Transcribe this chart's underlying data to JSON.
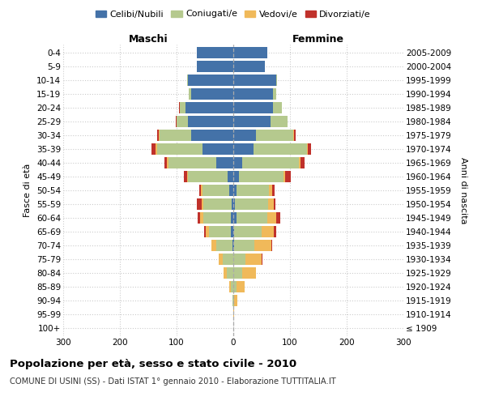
{
  "age_groups": [
    "100+",
    "95-99",
    "90-94",
    "85-89",
    "80-84",
    "75-79",
    "70-74",
    "65-69",
    "60-64",
    "55-59",
    "50-54",
    "45-49",
    "40-44",
    "35-39",
    "30-34",
    "25-29",
    "20-24",
    "15-19",
    "10-14",
    "5-9",
    "0-4"
  ],
  "birth_years": [
    "≤ 1909",
    "1910-1914",
    "1915-1919",
    "1920-1924",
    "1925-1929",
    "1930-1934",
    "1935-1939",
    "1940-1944",
    "1945-1949",
    "1950-1954",
    "1955-1959",
    "1960-1964",
    "1965-1969",
    "1970-1974",
    "1975-1979",
    "1980-1984",
    "1985-1989",
    "1990-1994",
    "1995-1999",
    "2000-2004",
    "2005-2009"
  ],
  "male": {
    "celibi": [
      0,
      0,
      0,
      0,
      0,
      0,
      2,
      5,
      5,
      3,
      7,
      10,
      30,
      55,
      75,
      80,
      85,
      75,
      80,
      65,
      65
    ],
    "coniugati": [
      0,
      0,
      2,
      5,
      12,
      18,
      28,
      38,
      48,
      50,
      48,
      70,
      85,
      80,
      55,
      20,
      10,
      3,
      1,
      0,
      0
    ],
    "vedovi": [
      0,
      0,
      0,
      2,
      5,
      8,
      8,
      5,
      5,
      3,
      2,
      2,
      2,
      2,
      1,
      0,
      0,
      0,
      0,
      0,
      0
    ],
    "divorziati": [
      0,
      0,
      0,
      0,
      0,
      0,
      1,
      3,
      5,
      8,
      3,
      5,
      5,
      8,
      3,
      2,
      1,
      0,
      0,
      0,
      0
    ]
  },
  "female": {
    "nubili": [
      0,
      0,
      0,
      0,
      0,
      0,
      2,
      2,
      5,
      3,
      5,
      10,
      15,
      35,
      40,
      65,
      70,
      70,
      75,
      55,
      60
    ],
    "coniugate": [
      0,
      0,
      2,
      5,
      15,
      22,
      35,
      48,
      55,
      58,
      58,
      78,
      100,
      95,
      65,
      30,
      15,
      5,
      2,
      0,
      0
    ],
    "vedove": [
      0,
      2,
      5,
      15,
      25,
      28,
      30,
      22,
      15,
      10,
      5,
      3,
      3,
      2,
      2,
      0,
      0,
      0,
      0,
      0,
      0
    ],
    "divorziate": [
      0,
      0,
      0,
      0,
      0,
      1,
      2,
      3,
      8,
      3,
      5,
      10,
      8,
      5,
      3,
      0,
      0,
      0,
      0,
      0,
      0
    ]
  },
  "colors": {
    "celibi": "#4472a8",
    "coniugati": "#b5c98e",
    "vedovi": "#f0b95a",
    "divorziati": "#c0312b"
  },
  "xlim": [
    -300,
    300
  ],
  "xticks": [
    -300,
    -200,
    -100,
    0,
    100,
    200,
    300
  ],
  "xticklabels": [
    "300",
    "200",
    "100",
    "0",
    "100",
    "200",
    "300"
  ],
  "title": "Popolazione per età, sesso e stato civile - 2010",
  "subtitle": "COMUNE DI USINI (SS) - Dati ISTAT 1° gennaio 2010 - Elaborazione TUTTITALIA.IT",
  "ylabel_left": "Fasce di età",
  "ylabel_right": "Anni di nascita",
  "legend_labels": [
    "Celibi/Nubili",
    "Coniugati/e",
    "Vedovi/e",
    "Divorziati/e"
  ],
  "maschi_label": "Maschi",
  "femmine_label": "Femmine",
  "bg_color": "#ffffff",
  "grid_color": "#cccccc",
  "center_line_color": "#aaaaaa"
}
